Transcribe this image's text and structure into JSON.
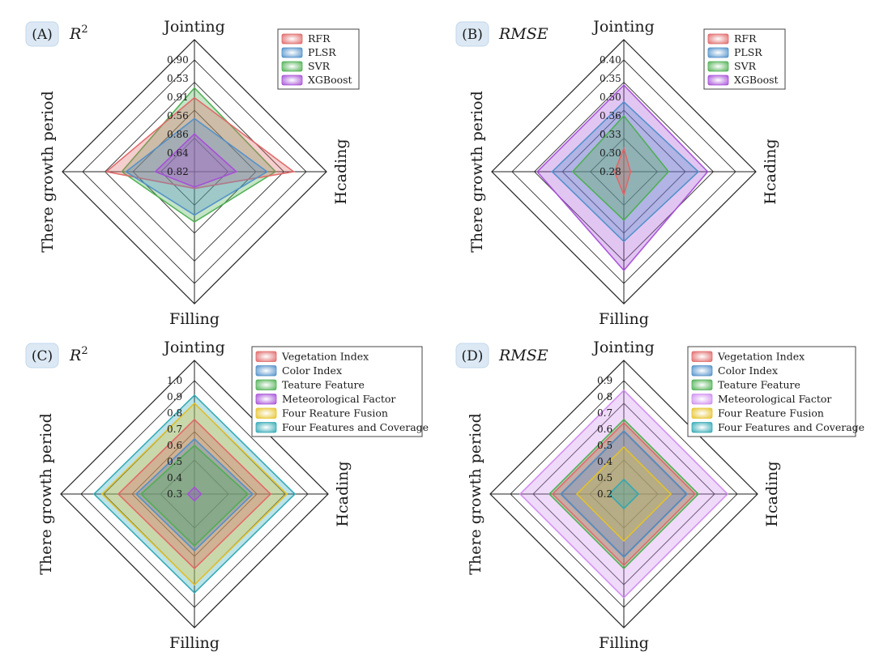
{
  "figure": {
    "axis_labels": {
      "top": "Jointing",
      "right": "Hcading",
      "bottom": "Filling",
      "left": "There growth period"
    }
  },
  "chart_data": [
    {
      "id": "A",
      "type": "radar",
      "panel_label": "(A)",
      "metric": "R",
      "metric_sup": "2",
      "axes": [
        "Jointing",
        "Hcading",
        "Filling",
        "There growth period"
      ],
      "scale_min": 0.82,
      "scale_max": 0.9,
      "tick_labels": [
        "0.82",
        "0.64",
        "0.86",
        "0.56",
        "0.91",
        "0.53",
        "0.90"
      ],
      "series": [
        {
          "name": "RFR",
          "color": "#e06666",
          "values": [
            0.873,
            0.891,
            0.832,
            0.883
          ]
        },
        {
          "name": "PLSR",
          "color": "#4f8fc9",
          "values": [
            0.858,
            0.872,
            0.851,
            0.869
          ]
        },
        {
          "name": "SVR",
          "color": "#4caf50",
          "values": [
            0.88,
            0.878,
            0.856,
            0.872
          ]
        },
        {
          "name": "XGBoost",
          "color": "#a64ed8",
          "values": [
            0.847,
            0.85,
            0.831,
            0.848
          ]
        }
      ]
    },
    {
      "id": "B",
      "type": "radar",
      "panel_label": "(B)",
      "metric": "RMSE",
      "metric_sup": "",
      "axes": [
        "Jointing",
        "Hcading",
        "Filling",
        "There growth period"
      ],
      "scale_min": 0.28,
      "scale_max": 0.4,
      "tick_labels": [
        "0.28",
        "0.30",
        "0.33",
        "0.36",
        "0.50",
        "0.35",
        "0.40"
      ],
      "series": [
        {
          "name": "RFR",
          "color": "#e06666",
          "values": [
            0.305,
            0.285,
            0.305,
            0.29
          ]
        },
        {
          "name": "PLSR",
          "color": "#4f8fc9",
          "values": [
            0.355,
            0.36,
            0.355,
            0.357
          ]
        },
        {
          "name": "SVR",
          "color": "#4caf50",
          "values": [
            0.34,
            0.328,
            0.332,
            0.335
          ]
        },
        {
          "name": "XGBoost",
          "color": "#a64ed8",
          "values": [
            0.373,
            0.37,
            0.386,
            0.373
          ]
        }
      ]
    },
    {
      "id": "C",
      "type": "radar",
      "panel_label": "(C)",
      "metric": "R",
      "metric_sup": "2",
      "axes": [
        "Jointing",
        "Hcading",
        "Filling",
        "There growth period"
      ],
      "scale_min": 0.3,
      "scale_max": 1.0,
      "tick_labels": [
        "0.3",
        "0.4",
        "0.5",
        "0.6",
        "0.7",
        "0.8",
        "0.9",
        "1.0"
      ],
      "series": [
        {
          "name": "Vegetation Index",
          "color": "#e06666",
          "values": [
            0.76,
            0.77,
            0.76,
            0.77
          ]
        },
        {
          "name": "Color Index",
          "color": "#4f8fc9",
          "values": [
            0.64,
            0.66,
            0.65,
            0.66
          ]
        },
        {
          "name": "Teature Feature",
          "color": "#4caf50",
          "values": [
            0.6,
            0.63,
            0.62,
            0.63
          ]
        },
        {
          "name": "Meteorological Factor",
          "color": "#a64ed8",
          "values": [
            0.34,
            0.34,
            0.34,
            0.34
          ]
        },
        {
          "name": "Four Reature Fusion",
          "color": "#e6c229",
          "values": [
            0.86,
            0.87,
            0.86,
            0.87
          ]
        },
        {
          "name": "Four Features and Coverage",
          "color": "#2fa8b4",
          "values": [
            0.91,
            0.92,
            0.91,
            0.92
          ]
        }
      ]
    },
    {
      "id": "D",
      "type": "radar",
      "panel_label": "(D)",
      "metric": "RMSE",
      "metric_sup": "",
      "axes": [
        "Jointing",
        "Hcading",
        "Filling",
        "There growth period"
      ],
      "scale_min": 0.2,
      "scale_max": 0.9,
      "tick_labels": [
        "0.2",
        "0.5",
        "0.4",
        "0.5",
        "0.6",
        "0.7",
        "0.8",
        "0.9"
      ],
      "series": [
        {
          "name": "Vegetation Index",
          "color": "#e06666",
          "values": [
            0.64,
            0.64,
            0.64,
            0.64
          ]
        },
        {
          "name": "Color Index",
          "color": "#4f8fc9",
          "values": [
            0.59,
            0.59,
            0.59,
            0.59
          ]
        },
        {
          "name": "Teature Feature",
          "color": "#4caf50",
          "values": [
            0.66,
            0.66,
            0.66,
            0.66
          ]
        },
        {
          "name": "Meteorological Factor",
          "color": "#d08cf0",
          "values": [
            0.84,
            0.84,
            0.84,
            0.84
          ]
        },
        {
          "name": "Four Reature Fusion",
          "color": "#e6c229",
          "values": [
            0.49,
            0.49,
            0.49,
            0.49
          ]
        },
        {
          "name": "Four Features and Coverage",
          "color": "#2fa8b4",
          "values": [
            0.29,
            0.29,
            0.29,
            0.29
          ]
        }
      ]
    }
  ]
}
